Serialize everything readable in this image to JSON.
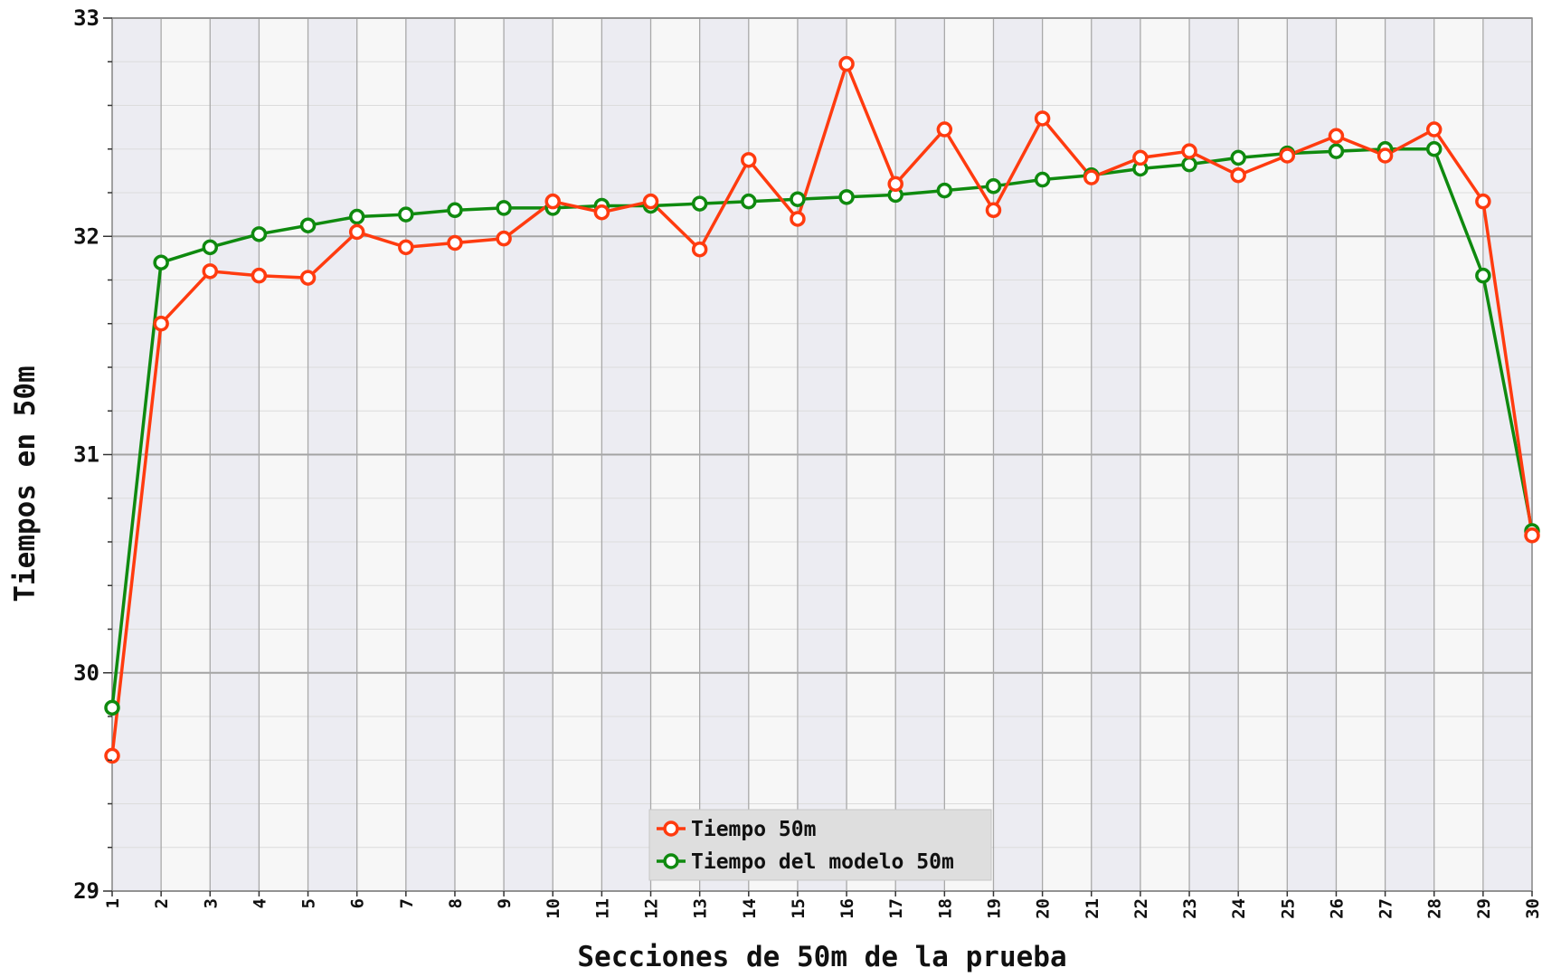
{
  "chart_data": {
    "type": "line",
    "xlabel": "Secciones de 50m de la prueba",
    "ylabel": "Tiempos en 50m",
    "ylim": [
      29,
      33
    ],
    "yticks": [
      29,
      30,
      31,
      32,
      33
    ],
    "grid": true,
    "legend_position": "bottom-center",
    "x": [
      1,
      2,
      3,
      4,
      5,
      6,
      7,
      8,
      9,
      10,
      11,
      12,
      13,
      14,
      15,
      16,
      17,
      18,
      19,
      20,
      21,
      22,
      23,
      24,
      25,
      26,
      27,
      28,
      29,
      30
    ],
    "series": [
      {
        "name": "Tiempo 50m",
        "color": "#ff3b0f",
        "values": [
          29.62,
          31.6,
          31.84,
          31.82,
          31.81,
          32.02,
          31.95,
          31.97,
          31.99,
          32.16,
          32.11,
          32.16,
          31.94,
          32.35,
          32.08,
          32.79,
          32.24,
          32.49,
          32.12,
          32.54,
          32.27,
          32.36,
          32.39,
          32.28,
          32.37,
          32.46,
          32.37,
          32.49,
          32.16,
          30.63
        ]
      },
      {
        "name": "Tiempo del modelo 50m",
        "color": "#0f8a0f",
        "values": [
          29.84,
          31.88,
          31.95,
          32.01,
          32.05,
          32.09,
          32.1,
          32.12,
          32.13,
          32.13,
          32.14,
          32.14,
          32.15,
          32.16,
          32.17,
          32.18,
          32.19,
          32.21,
          32.23,
          32.26,
          32.28,
          32.31,
          32.33,
          32.36,
          32.38,
          32.39,
          32.4,
          32.4,
          31.82,
          30.65
        ]
      }
    ]
  }
}
